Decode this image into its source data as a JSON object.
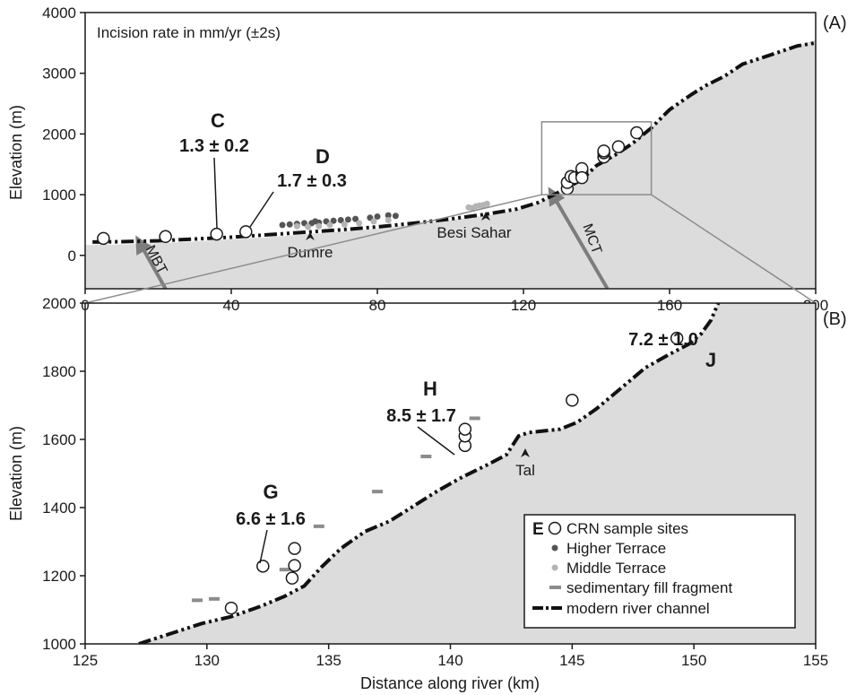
{
  "chart_data": [
    {
      "panel": "(A)",
      "type": "line",
      "note": "Incision rate in mm/yr (±2s)",
      "xlabel": "",
      "ylabel": "Elevation (m)",
      "xlim": [
        0,
        200
      ],
      "ylim": [
        -550,
        4000
      ],
      "xticks": [
        "0",
        "40",
        "80",
        "120",
        "160",
        "200"
      ],
      "yticks": [
        "0",
        "1000",
        "2000",
        "3000",
        "4000"
      ],
      "xtick_values": [
        0,
        40,
        80,
        120,
        160,
        200
      ],
      "ytick_values": [
        0,
        1000,
        2000,
        3000,
        4000
      ],
      "river_channel": {
        "x": [
          2,
          10,
          20,
          30,
          40,
          50,
          60,
          70,
          80,
          90,
          100,
          110,
          118,
          124,
          130,
          136,
          140,
          145,
          150,
          155,
          160,
          166,
          170,
          175,
          180,
          185,
          190,
          195,
          200
        ],
        "y": [
          220,
          225,
          240,
          270,
          300,
          340,
          380,
          420,
          470,
          530,
          600,
          680,
          760,
          870,
          1050,
          1250,
          1480,
          1650,
          1850,
          2100,
          2400,
          2650,
          2800,
          2950,
          3150,
          3250,
          3350,
          3450,
          3500
        ]
      },
      "terrain_surface": {
        "x": [
          0,
          10,
          20,
          30,
          40,
          50,
          60,
          70,
          80,
          90,
          100,
          110,
          118,
          124,
          130,
          136,
          140,
          145,
          150,
          155,
          160,
          166,
          170,
          175,
          180,
          185,
          190,
          195,
          200
        ],
        "y": [
          170,
          180,
          200,
          230,
          265,
          300,
          345,
          390,
          440,
          500,
          580,
          660,
          740,
          860,
          1050,
          1250,
          1480,
          1650,
          1850,
          2100,
          2400,
          2650,
          2800,
          2950,
          3150,
          3250,
          3350,
          3450,
          3550
        ]
      },
      "crn_sites": {
        "x": [
          5,
          22,
          36,
          44,
          132,
          132,
          133,
          134,
          136,
          136,
          136,
          136,
          142,
          142,
          142,
          146,
          151
        ],
        "y": [
          280,
          310,
          350,
          390,
          1100,
          1200,
          1300,
          1280,
          1330,
          1380,
          1430,
          1280,
          1620,
          1690,
          1720,
          1790,
          2020
        ]
      },
      "higher_terrace": {
        "x": [
          54,
          56,
          58,
          60,
          62,
          63,
          64,
          66,
          68,
          70,
          72,
          74,
          78,
          80,
          83,
          85
        ],
        "y": [
          500,
          510,
          520,
          530,
          530,
          560,
          540,
          560,
          570,
          580,
          590,
          600,
          620,
          640,
          660,
          650
        ]
      },
      "middle_terrace": {
        "x": [
          58,
          61,
          64,
          67,
          71,
          75,
          79,
          83,
          105,
          106,
          107,
          108,
          109,
          110
        ],
        "y": [
          480,
          470,
          480,
          500,
          510,
          530,
          560,
          580,
          790,
          780,
          810,
          820,
          830,
          850
        ]
      },
      "site_labels": [
        {
          "letter": "C",
          "rate": "1.3 ± 0.2",
          "site_x": 36,
          "site_y": 350
        },
        {
          "letter": "D",
          "rate": "1.7 ± 0.3",
          "site_x": 44,
          "site_y": 390
        }
      ],
      "places": [
        {
          "name": "Dumre",
          "x": 62,
          "y": 380
        },
        {
          "name": "Besi Sahar",
          "x": 109,
          "y": 680
        }
      ],
      "faults": [
        {
          "name": "MBT",
          "x_top": 15,
          "y_top": 200,
          "x_bottom": 22,
          "y_bottom": -550
        },
        {
          "name": "MCT",
          "x_top": 128,
          "y_top": 1000,
          "x_bottom": 143,
          "y_bottom": -550
        }
      ],
      "inset_box": {
        "x0": 125,
        "x1": 155,
        "y0": 1000,
        "y1": 2200
      }
    },
    {
      "panel": "(B)",
      "type": "line",
      "xlabel": "Distance along river (km)",
      "ylabel": "Elevation (m)",
      "xlim": [
        125,
        155
      ],
      "ylim": [
        1000,
        2000
      ],
      "xticks": [
        "125",
        "130",
        "135",
        "140",
        "145",
        "150",
        "155"
      ],
      "yticks": [
        "1000",
        "1200",
        "1400",
        "1600",
        "1800",
        "2000"
      ],
      "xtick_values": [
        125,
        130,
        135,
        140,
        145,
        150,
        155
      ],
      "ytick_values": [
        1000,
        1200,
        1400,
        1600,
        1800,
        2000
      ],
      "river_channel": {
        "x": [
          127.2,
          128.5,
          129.8,
          131.0,
          132.2,
          133.2,
          134.0,
          134.7,
          135.5,
          136.5,
          137.5,
          138.5,
          139.5,
          140.5,
          141.5,
          142.3,
          142.8,
          143.2,
          144.5,
          145.2,
          146.0,
          147.0,
          148.0,
          149.0,
          149.8,
          150.3,
          150.7,
          151.0
        ],
        "y": [
          1000,
          1030,
          1060,
          1080,
          1110,
          1140,
          1170,
          1225,
          1280,
          1330,
          1360,
          1405,
          1450,
          1490,
          1525,
          1555,
          1610,
          1620,
          1630,
          1650,
          1690,
          1750,
          1810,
          1850,
          1880,
          1910,
          1950,
          2000
        ]
      },
      "terrain_surface": {
        "x": [
          127.2,
          128.5,
          129.8,
          131.0,
          132.2,
          133.2,
          134.0,
          134.7,
          135.5,
          136.5,
          137.5,
          138.5,
          139.5,
          140.5,
          141.5,
          142.3,
          142.8,
          143.2,
          144.5,
          145.2,
          146.0,
          147.0,
          148.0,
          149.0,
          149.8,
          150.3,
          150.7,
          151.0
        ],
        "y": [
          1000,
          1030,
          1060,
          1080,
          1110,
          1140,
          1170,
          1225,
          1280,
          1330,
          1360,
          1405,
          1450,
          1490,
          1525,
          1555,
          1610,
          1620,
          1630,
          1650,
          1690,
          1750,
          1810,
          1850,
          1880,
          1910,
          1950,
          2000
        ]
      },
      "crn_sites": {
        "x": [
          131.0,
          132.3,
          133.5,
          133.6,
          133.6,
          140.6,
          140.6,
          140.6,
          145.0,
          149.3
        ],
        "y": [
          1105,
          1228,
          1193,
          1230,
          1280,
          1582,
          1610,
          1630,
          1715,
          1897
        ]
      },
      "sedimentary_fill": {
        "x": [
          129.6,
          130.3,
          133.2,
          134.6,
          137.0,
          139.0,
          141.0
        ],
        "y": [
          1128,
          1132,
          1218,
          1345,
          1447,
          1550,
          1662
        ]
      },
      "site_labels": [
        {
          "letter": "G",
          "rate": "6.6 ± 1.6",
          "site_x": 133.6,
          "site_y": 1280
        },
        {
          "letter": "H",
          "rate": "8.5 ± 1.7",
          "site_x": 140.6,
          "site_y": 1610
        },
        {
          "letter": "J",
          "rate": "7.2 ± 1.0",
          "site_x": 149.3,
          "site_y": 1897
        }
      ],
      "places": [
        {
          "name": "Tal",
          "x": 143.3,
          "y": 1620
        }
      ],
      "legend": {
        "placement": "bottom-right",
        "letter": "E",
        "entries": [
          {
            "label": "CRN sample sites",
            "marker": "open-circle"
          },
          {
            "label": "Higher Terrace",
            "marker": "dot",
            "color": "#555555"
          },
          {
            "label": "Middle Terrace",
            "marker": "dot",
            "color": "#b4b4b4"
          },
          {
            "label": "sedimentary fill fragment",
            "marker": "dash",
            "color": "#8c8c8c"
          },
          {
            "label": "modern river channel",
            "marker": "dash-dot-dot",
            "color": "#111111"
          }
        ]
      }
    }
  ],
  "colors": {
    "terrain": "#dcdcdc",
    "channel": "#111111",
    "higher_terrace": "#555555",
    "middle_terrace": "#b4b4b4",
    "fill_fragment": "#8c8c8c",
    "fault_arrow": "#7d7d7d",
    "inset_box": "#8c8c8c"
  }
}
